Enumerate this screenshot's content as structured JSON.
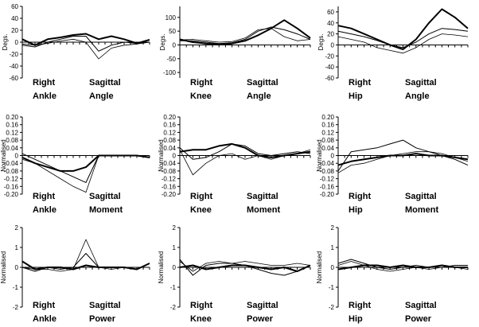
{
  "chart_data": [
    {
      "type": "line",
      "ylabel": "Degs.",
      "ylim": [
        -60,
        60
      ],
      "yticks": [
        -60,
        -40,
        -20,
        0,
        20,
        40,
        60
      ],
      "caption": {
        "side": "Right",
        "plane": "Sagittal",
        "joint": "Ankle",
        "measure": "Angle"
      },
      "x": [
        0,
        10,
        20,
        30,
        40,
        50,
        60,
        70,
        80,
        90,
        100
      ],
      "series": [
        {
          "values": [
            5,
            -5,
            5,
            8,
            12,
            14,
            5,
            10,
            5,
            -2,
            4
          ],
          "weight": "thick"
        },
        {
          "values": [
            -5,
            -8,
            0,
            5,
            10,
            10,
            -15,
            -5,
            0,
            -2,
            0
          ],
          "weight": "medium"
        },
        {
          "values": [
            -3,
            -5,
            -2,
            2,
            5,
            0,
            -28,
            -10,
            -5,
            -3,
            0
          ],
          "weight": "thin"
        }
      ]
    },
    {
      "type": "line",
      "ylabel": "Degs.",
      "ylim": [
        -120,
        140
      ],
      "yticks": [
        -100,
        -50,
        0,
        50,
        100
      ],
      "caption": {
        "side": "Right",
        "plane": "Sagittal",
        "joint": "Knee",
        "measure": "Angle"
      },
      "x": [
        0,
        10,
        20,
        30,
        40,
        50,
        60,
        70,
        80,
        90,
        100
      ],
      "series": [
        {
          "values": [
            20,
            10,
            5,
            2,
            5,
            15,
            35,
            60,
            90,
            60,
            25
          ],
          "weight": "thick"
        },
        {
          "values": [
            15,
            15,
            10,
            5,
            8,
            20,
            50,
            65,
            55,
            40,
            20
          ],
          "weight": "medium"
        },
        {
          "values": [
            18,
            20,
            15,
            10,
            12,
            25,
            55,
            60,
            30,
            15,
            20
          ],
          "weight": "thin"
        }
      ]
    },
    {
      "type": "line",
      "ylabel": "Degs.",
      "ylim": [
        -60,
        70
      ],
      "yticks": [
        -60,
        -40,
        -20,
        0,
        20,
        40,
        60
      ],
      "caption": {
        "side": "Right",
        "plane": "Sagittal",
        "joint": "Hip",
        "measure": "Angle"
      },
      "x": [
        0,
        10,
        20,
        30,
        40,
        50,
        60,
        70,
        80,
        90,
        100
      ],
      "series": [
        {
          "values": [
            35,
            30,
            20,
            10,
            0,
            -8,
            10,
            40,
            65,
            50,
            30
          ],
          "weight": "thick"
        },
        {
          "values": [
            25,
            20,
            15,
            8,
            0,
            -5,
            5,
            20,
            30,
            28,
            25
          ],
          "weight": "medium"
        },
        {
          "values": [
            15,
            10,
            5,
            -5,
            -10,
            -15,
            -5,
            10,
            20,
            18,
            15
          ],
          "weight": "thin"
        }
      ]
    },
    {
      "type": "line",
      "ylabel": "Normalised",
      "ylim": [
        -0.2,
        0.2
      ],
      "yticks": [
        -0.2,
        -0.16,
        -0.12,
        -0.08,
        -0.04,
        0,
        0.04,
        0.08,
        0.12,
        0.16,
        0.2
      ],
      "ytick_labels": [
        "-0.20",
        "-0.16",
        "-0.12",
        "-0.08",
        "-0.04",
        "0",
        "0.04",
        "0.08",
        "0.12",
        "0.16",
        "0.20"
      ],
      "caption": {
        "side": "Right",
        "plane": "Sagittal",
        "joint": "Ankle",
        "measure": "Moment"
      },
      "x": [
        0,
        10,
        20,
        30,
        40,
        50,
        60,
        70,
        80,
        90,
        100
      ],
      "series": [
        {
          "values": [
            -0.01,
            -0.04,
            -0.06,
            -0.08,
            -0.08,
            -0.06,
            0,
            0,
            0,
            0,
            -0.01
          ],
          "weight": "thick"
        },
        {
          "values": [
            0.01,
            -0.02,
            -0.05,
            -0.08,
            -0.11,
            -0.14,
            0,
            0,
            0,
            0,
            0
          ],
          "weight": "medium"
        },
        {
          "values": [
            -0.02,
            -0.04,
            -0.08,
            -0.12,
            -0.16,
            -0.19,
            0,
            0,
            0,
            0,
            0
          ],
          "weight": "thin"
        }
      ]
    },
    {
      "type": "line",
      "ylabel": "Normalised",
      "ylim": [
        -0.2,
        0.2
      ],
      "yticks": [
        -0.2,
        -0.16,
        -0.12,
        -0.08,
        -0.04,
        0,
        0.04,
        0.08,
        0.12,
        0.16,
        0.2
      ],
      "ytick_labels": [
        "-0.20",
        "-0.16",
        "-0.12",
        "-0.08",
        "-0.04",
        "0",
        "0.04",
        "0.08",
        "0.12",
        "0.16",
        "0.20"
      ],
      "caption": {
        "side": "Right",
        "plane": "Sagittal",
        "joint": "Knee",
        "measure": "Moment"
      },
      "x": [
        0,
        10,
        20,
        30,
        40,
        50,
        60,
        70,
        80,
        90,
        100
      ],
      "series": [
        {
          "values": [
            0.02,
            0.03,
            0.03,
            0.05,
            0.06,
            0.04,
            0,
            -0.01,
            0,
            0.01,
            0.02
          ],
          "weight": "thick"
        },
        {
          "values": [
            0.04,
            -0.02,
            -0.01,
            0.02,
            0.06,
            0.05,
            0.01,
            0,
            0.01,
            0.02,
            0.01
          ],
          "weight": "medium"
        },
        {
          "values": [
            0.03,
            -0.1,
            -0.04,
            0,
            0.01,
            -0.02,
            0,
            -0.02,
            0,
            0.01,
            0.03
          ],
          "weight": "thin"
        }
      ]
    },
    {
      "type": "line",
      "ylabel": "Normalised",
      "ylim": [
        -0.2,
        0.2
      ],
      "yticks": [
        -0.2,
        -0.16,
        -0.12,
        -0.08,
        -0.04,
        0,
        0.04,
        0.08,
        0.12,
        0.16,
        0.2
      ],
      "ytick_labels": [
        "-0.20",
        "-0.16",
        "-0.12",
        "-0.08",
        "-0.04",
        "0",
        "0.04",
        "0.08",
        "0.12",
        "0.16",
        "0.20"
      ],
      "caption": {
        "side": "Right",
        "plane": "Sagittal",
        "joint": "Hip",
        "measure": "Moment"
      },
      "x": [
        0,
        10,
        20,
        30,
        40,
        50,
        60,
        70,
        80,
        90,
        100
      ],
      "series": [
        {
          "values": [
            -0.05,
            -0.03,
            -0.02,
            -0.01,
            0,
            0,
            0.01,
            0,
            0,
            -0.01,
            -0.02
          ],
          "weight": "thick"
        },
        {
          "values": [
            -0.08,
            0.02,
            0.03,
            0.04,
            0.06,
            0.08,
            0.04,
            0.02,
            0,
            -0.02,
            -0.05
          ],
          "weight": "medium"
        },
        {
          "values": [
            -0.09,
            -0.05,
            -0.04,
            -0.02,
            0,
            0.01,
            0.02,
            0.02,
            0.01,
            -0.01,
            -0.03
          ],
          "weight": "thin"
        }
      ]
    },
    {
      "type": "line",
      "ylabel": "Normalised",
      "ylim": [
        -2,
        2
      ],
      "yticks": [
        -2,
        -1,
        0,
        1,
        2
      ],
      "caption": {
        "side": "Right",
        "plane": "Sagittal",
        "joint": "Ankle",
        "measure": "Power"
      },
      "x": [
        0,
        10,
        20,
        30,
        40,
        50,
        60,
        70,
        80,
        90,
        100
      ],
      "series": [
        {
          "values": [
            0.3,
            -0.1,
            0,
            0,
            -0.1,
            0.1,
            0,
            0,
            0,
            -0.1,
            0.2
          ],
          "weight": "thick"
        },
        {
          "values": [
            0,
            -0.2,
            0,
            -0.1,
            0,
            0.7,
            0,
            0,
            0,
            0,
            0
          ],
          "weight": "medium"
        },
        {
          "values": [
            0,
            -0.1,
            -0.1,
            -0.2,
            -0.1,
            1.4,
            0,
            -0.1,
            0,
            0,
            0
          ],
          "weight": "thin"
        }
      ]
    },
    {
      "type": "line",
      "ylabel": "Normalised",
      "ylim": [
        -2,
        2
      ],
      "yticks": [
        -2,
        -1,
        0,
        1,
        2
      ],
      "caption": {
        "side": "Right",
        "plane": "Sagittal",
        "joint": "Knee",
        "measure": "Power"
      },
      "x": [
        0,
        10,
        20,
        30,
        40,
        50,
        60,
        70,
        80,
        90,
        100
      ],
      "series": [
        {
          "values": [
            0,
            0.1,
            -0.1,
            0,
            0.1,
            0.1,
            0,
            -0.1,
            0,
            -0.2,
            0.1
          ],
          "weight": "thick"
        },
        {
          "values": [
            0.4,
            -0.4,
            0.1,
            0.2,
            0.2,
            0.1,
            -0.1,
            -0.3,
            -0.4,
            -0.2,
            0.1
          ],
          "weight": "medium"
        },
        {
          "values": [
            0.3,
            -0.2,
            0.2,
            0.3,
            0.2,
            0.3,
            0.2,
            0.1,
            0.1,
            0.2,
            0.1
          ],
          "weight": "thin"
        }
      ]
    },
    {
      "type": "line",
      "ylabel": "Normalised",
      "ylim": [
        -2,
        2
      ],
      "yticks": [
        -2,
        -1,
        0,
        1,
        2
      ],
      "caption": {
        "side": "Right",
        "plane": "Sagittal",
        "joint": "Hip",
        "measure": "Power"
      },
      "x": [
        0,
        10,
        20,
        30,
        40,
        50,
        60,
        70,
        80,
        90,
        100
      ],
      "series": [
        {
          "values": [
            -0.1,
            0,
            0.1,
            0.1,
            0,
            0.1,
            0,
            0,
            0.1,
            0,
            0
          ],
          "weight": "thick"
        },
        {
          "values": [
            0.2,
            0.4,
            0.2,
            0,
            -0.1,
            0,
            0.1,
            0,
            0,
            0.1,
            0.1
          ],
          "weight": "medium"
        },
        {
          "values": [
            0.1,
            0.3,
            0.1,
            -0.1,
            -0.2,
            -0.1,
            0,
            -0.1,
            0,
            0,
            -0.1
          ],
          "weight": "thin"
        }
      ]
    }
  ]
}
